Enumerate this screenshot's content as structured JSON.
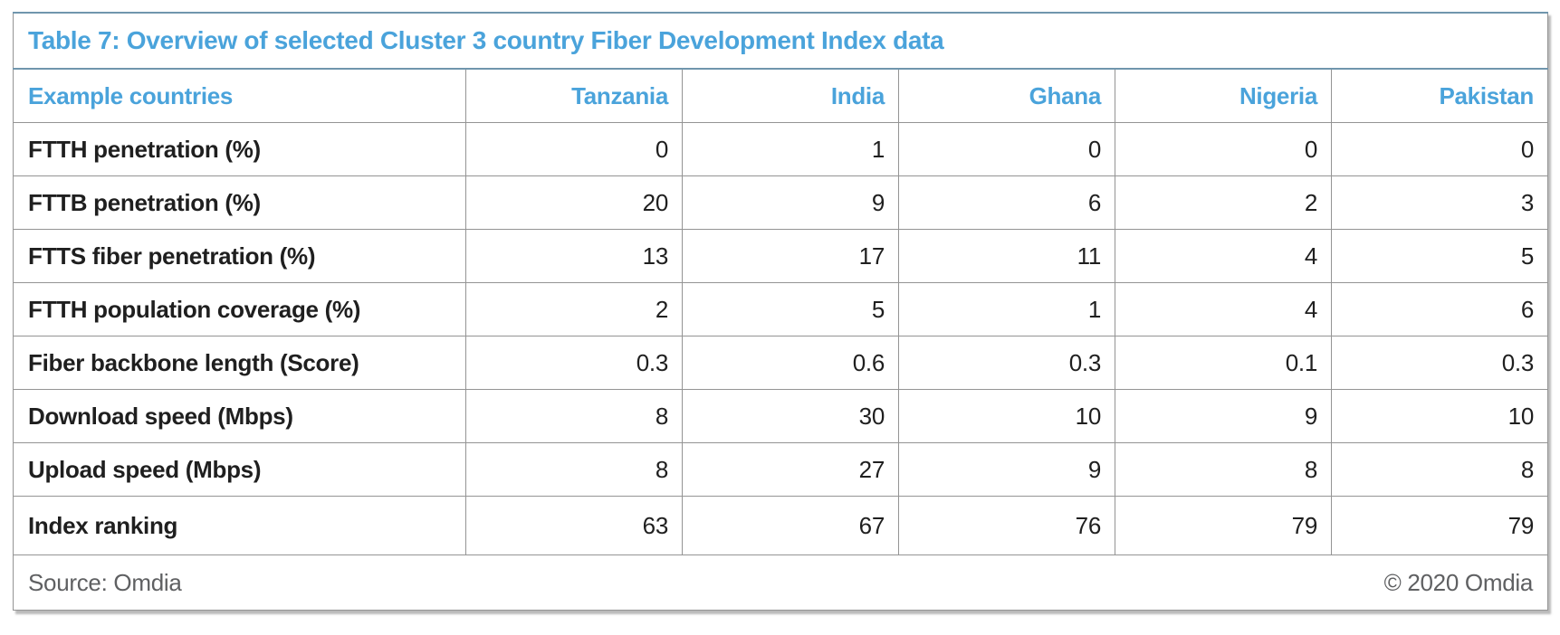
{
  "title": "Table 7: Overview of selected Cluster 3 country Fiber Development Index data",
  "colors": {
    "accent_blue": "#4aa3db",
    "outer_top_border_blue": "#7096ad",
    "grid_gray": "#949494",
    "text_black": "#1f1f1f",
    "footer_gray": "#5f6062"
  },
  "table": {
    "header": {
      "label_col": "Example countries",
      "countries": [
        "Tanzania",
        "India",
        "Ghana",
        "Nigeria",
        "Pakistan"
      ]
    },
    "rows": [
      {
        "label": "FTTH penetration (%)",
        "values": [
          "0",
          "1",
          "0",
          "0",
          "0"
        ]
      },
      {
        "label": "FTTB penetration (%)",
        "values": [
          "20",
          "9",
          "6",
          "2",
          "3"
        ]
      },
      {
        "label": "FTTS fiber penetration (%)",
        "values": [
          "13",
          "17",
          "11",
          "4",
          "5"
        ]
      },
      {
        "label": "FTTH population coverage (%)",
        "values": [
          "2",
          "5",
          "1",
          "4",
          "6"
        ]
      },
      {
        "label": "Fiber backbone length (Score)",
        "values": [
          "0.3",
          "0.6",
          "0.3",
          "0.1",
          "0.3"
        ]
      },
      {
        "label": "Download speed (Mbps)",
        "values": [
          "8",
          "30",
          "10",
          "9",
          "10"
        ]
      },
      {
        "label": "Upload speed (Mbps)",
        "values": [
          "8",
          "27",
          "9",
          "8",
          "8"
        ]
      },
      {
        "label": "Index ranking",
        "values": [
          "63",
          "67",
          "76",
          "79",
          "79"
        ]
      }
    ]
  },
  "footer": {
    "source": "Source: Omdia",
    "copyright": "© 2020 Omdia"
  }
}
